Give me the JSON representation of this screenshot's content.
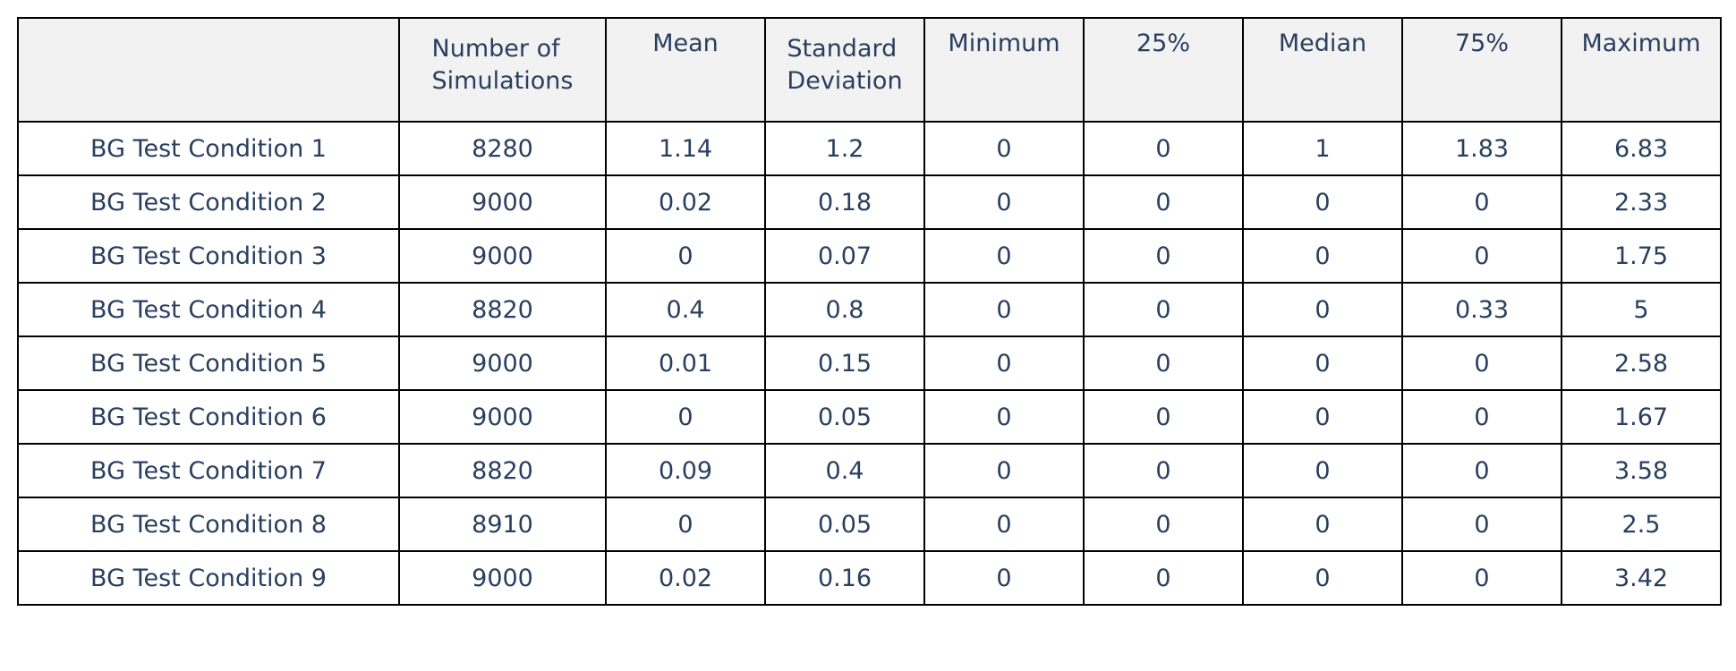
{
  "chart_data": {
    "type": "table",
    "columns": [
      "",
      "Number of Simulations",
      "Mean",
      "Standard Deviation",
      "Minimum",
      "25%",
      "Median",
      "75%",
      "Maximum"
    ],
    "header_lines": [
      [
        ""
      ],
      [
        "Number of",
        "Simulations"
      ],
      [
        "Mean"
      ],
      [
        "Standard",
        "Deviation"
      ],
      [
        "Minimum"
      ],
      [
        "25%"
      ],
      [
        "Median"
      ],
      [
        "75%"
      ],
      [
        "Maximum"
      ]
    ],
    "rows": [
      [
        "BG Test Condition 1",
        "8280",
        "1.14",
        "1.2",
        "0",
        "0",
        "1",
        "1.83",
        "6.83"
      ],
      [
        "BG Test Condition 2",
        "9000",
        "0.02",
        "0.18",
        "0",
        "0",
        "0",
        "0",
        "2.33"
      ],
      [
        "BG Test Condition 3",
        "9000",
        "0",
        "0.07",
        "0",
        "0",
        "0",
        "0",
        "1.75"
      ],
      [
        "BG Test Condition 4",
        "8820",
        "0.4",
        "0.8",
        "0",
        "0",
        "0",
        "0.33",
        "5"
      ],
      [
        "BG Test Condition 5",
        "9000",
        "0.01",
        "0.15",
        "0",
        "0",
        "0",
        "0",
        "2.58"
      ],
      [
        "BG Test Condition 6",
        "9000",
        "0",
        "0.05",
        "0",
        "0",
        "0",
        "0",
        "1.67"
      ],
      [
        "BG Test Condition 7",
        "8820",
        "0.09",
        "0.4",
        "0",
        "0",
        "0",
        "0",
        "3.58"
      ],
      [
        "BG Test Condition 8",
        "8910",
        "0",
        "0.05",
        "0",
        "0",
        "0",
        "0",
        "2.5"
      ],
      [
        "BG Test Condition 9",
        "9000",
        "0.02",
        "0.16",
        "0",
        "0",
        "0",
        "0",
        "3.42"
      ]
    ],
    "colors": {
      "text": "#2a3f5f",
      "header_fill": "#f2f2f2",
      "cell_fill": "#ffffff",
      "border": "#000000"
    }
  }
}
